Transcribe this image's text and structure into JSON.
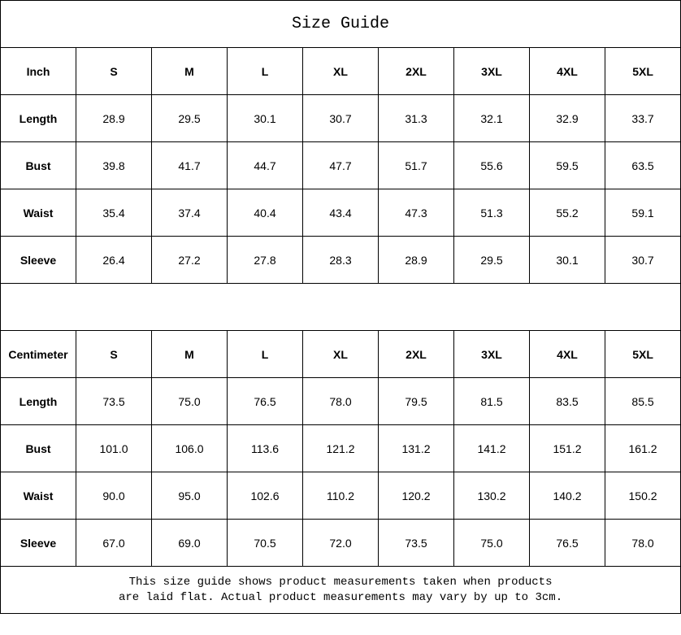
{
  "title": "Size Guide",
  "sizes": [
    "S",
    "M",
    "L",
    "XL",
    "2XL",
    "3XL",
    "4XL",
    "5XL"
  ],
  "tables": [
    {
      "unit": "Inch",
      "rows": [
        {
          "label": "Length",
          "values": [
            "28.9",
            "29.5",
            "30.1",
            "30.7",
            "31.3",
            "32.1",
            "32.9",
            "33.7"
          ]
        },
        {
          "label": "Bust",
          "values": [
            "39.8",
            "41.7",
            "44.7",
            "47.7",
            "51.7",
            "55.6",
            "59.5",
            "63.5"
          ]
        },
        {
          "label": "Waist",
          "values": [
            "35.4",
            "37.4",
            "40.4",
            "43.4",
            "47.3",
            "51.3",
            "55.2",
            "59.1"
          ]
        },
        {
          "label": "Sleeve",
          "values": [
            "26.4",
            "27.2",
            "27.8",
            "28.3",
            "28.9",
            "29.5",
            "30.1",
            "30.7"
          ]
        }
      ]
    },
    {
      "unit": "Centimeter",
      "rows": [
        {
          "label": "Length",
          "values": [
            "73.5",
            "75.0",
            "76.5",
            "78.0",
            "79.5",
            "81.5",
            "83.5",
            "85.5"
          ]
        },
        {
          "label": "Bust",
          "values": [
            "101.0",
            "106.0",
            "113.6",
            "121.2",
            "131.2",
            "141.2",
            "151.2",
            "161.2"
          ]
        },
        {
          "label": "Waist",
          "values": [
            "90.0",
            "95.0",
            "102.6",
            "110.2",
            "120.2",
            "130.2",
            "140.2",
            "150.2"
          ]
        },
        {
          "label": "Sleeve",
          "values": [
            "67.0",
            "69.0",
            "70.5",
            "72.0",
            "73.5",
            "75.0",
            "76.5",
            "78.0"
          ]
        }
      ]
    }
  ],
  "note_line1": "This size guide shows product measurements taken when products",
  "note_line2": "are laid flat. Actual product measurements may vary by up to 3cm."
}
